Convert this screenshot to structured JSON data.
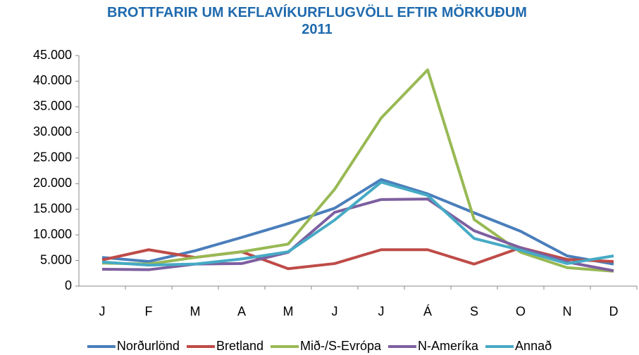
{
  "chart_data": {
    "type": "line",
    "title": "BROTTFARIR UM KEFLAVÍKURFLUGVÖLL EFTIR MÖRKUÐUM 2011",
    "categories": [
      "J",
      "F",
      "M",
      "A",
      "M",
      "J",
      "J",
      "Á",
      "S",
      "O",
      "N",
      "D"
    ],
    "ylim": [
      0,
      45000
    ],
    "yticks": [
      0,
      {
        "value": 5000,
        "label": "5.000"
      },
      {
        "value": 10000,
        "label": "10.000"
      },
      {
        "value": 15000,
        "label": "15.000"
      },
      {
        "value": 20000,
        "label": "20.000"
      },
      {
        "value": 25000,
        "label": "25.000"
      },
      {
        "value": 30000,
        "label": "30.000"
      },
      {
        "value": 35000,
        "label": "35.000"
      },
      {
        "value": 40000,
        "label": "40.000"
      },
      {
        "value": 45000,
        "label": "45.000"
      }
    ],
    "legend": "bottom",
    "series": [
      {
        "name": "Norðurlönd",
        "color": "#4a7ebb",
        "values": [
          5600,
          4800,
          6900,
          9500,
          12200,
          15200,
          20800,
          18000,
          14300,
          10700,
          5900,
          4300
        ]
      },
      {
        "name": "Bretland",
        "color": "#be4b48",
        "values": [
          5100,
          7100,
          5600,
          6700,
          3400,
          4400,
          7100,
          7100,
          4300,
          7500,
          5200,
          4800
        ]
      },
      {
        "name": "Mið-/S-Evrópa",
        "color": "#98b954",
        "values": [
          4500,
          4300,
          5600,
          6700,
          8200,
          18900,
          32800,
          42200,
          13000,
          6600,
          3600,
          2900
        ]
      },
      {
        "name": "N-Ameríka",
        "color": "#7d5fa0",
        "values": [
          3300,
          3200,
          4300,
          4400,
          6600,
          14400,
          16900,
          17000,
          10800,
          7500,
          4700,
          3000
        ]
      },
      {
        "name": "Annað",
        "color": "#46aac5",
        "values": [
          4700,
          4100,
          4300,
          5300,
          6700,
          12900,
          20300,
          17700,
          9300,
          7000,
          4400,
          5900
        ]
      }
    ]
  }
}
